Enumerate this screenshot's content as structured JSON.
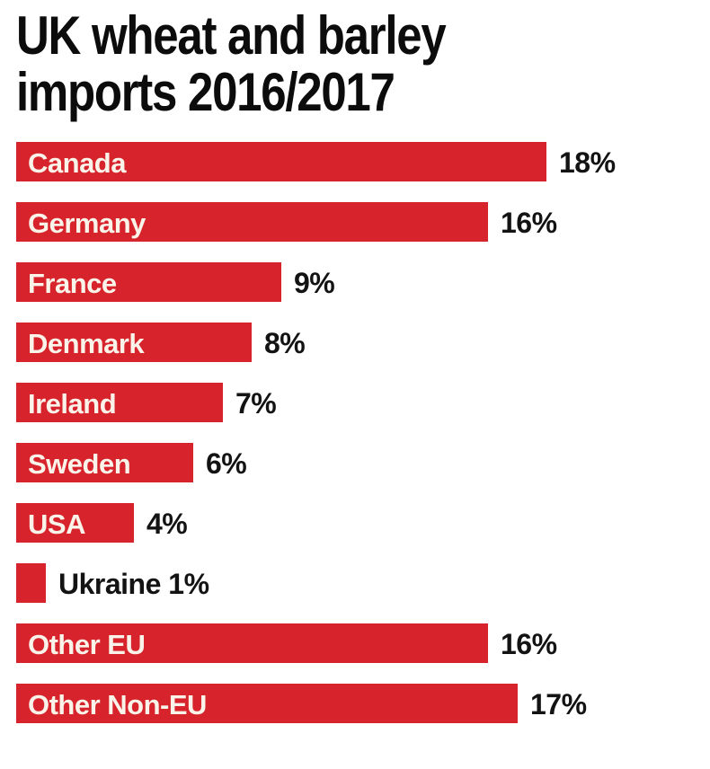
{
  "title": {
    "lines": [
      "UK wheat and barley",
      "imports 2016/2017"
    ],
    "full": "UK wheat and barley imports 2016/2017"
  },
  "colors": {
    "bar": "#d7232b",
    "label_inside": "#f9f3ea",
    "label_outside": "#131313",
    "title": "#0c0c0c",
    "background": "#ffffff"
  },
  "chart_data": {
    "type": "bar",
    "orientation": "horizontal",
    "title": "UK wheat and barley imports 2016/2017",
    "xlabel": "",
    "ylabel": "",
    "xlim": [
      0,
      18
    ],
    "grid": false,
    "legend": false,
    "unit": "%",
    "categories": [
      "Canada",
      "Germany",
      "France",
      "Denmark",
      "Ireland",
      "Sweden",
      "USA",
      "Ukraine",
      "Other EU",
      "Other Non-EU"
    ],
    "values": [
      18,
      16,
      9,
      8,
      7,
      6,
      4,
      1,
      16,
      17
    ],
    "value_labels": [
      "18%",
      "16%",
      "9%",
      "8%",
      "7%",
      "6%",
      "4%",
      "1%",
      "16%",
      "17%"
    ],
    "label_inside": [
      true,
      true,
      true,
      true,
      true,
      true,
      true,
      false,
      true,
      true
    ]
  }
}
